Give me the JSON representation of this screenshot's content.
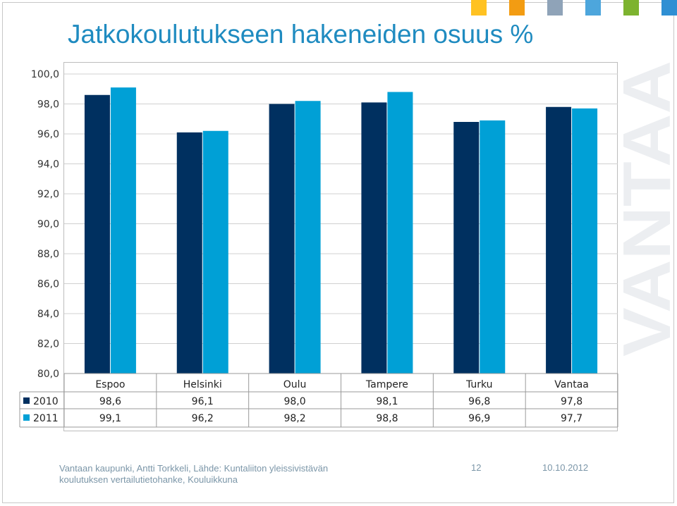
{
  "colors": {
    "series_2010": "#003060",
    "series_2011": "#00a0d6",
    "title": "#1f8bc0",
    "footer": "#7b96a8",
    "gridline": "#d0d0d0",
    "watermark": "#eceef1"
  },
  "brand_squares": [
    "#ffc222",
    "#f39c12",
    "#8fa3b8",
    "#4da6dc",
    "#7db32f",
    "#2f8fd3"
  ],
  "watermark_text": "VANTAA",
  "chart_data": {
    "type": "bar",
    "title": "Jatkokoulutukseen hakeneiden osuus %",
    "categories": [
      "Espoo",
      "Helsinki",
      "Oulu",
      "Tampere",
      "Turku",
      "Vantaa"
    ],
    "series": [
      {
        "name": "2010",
        "values": [
          98.6,
          96.1,
          98.0,
          98.1,
          96.8,
          97.8
        ],
        "labels": [
          "98,6",
          "96,1",
          "98,0",
          "98,1",
          "96,8",
          "97,8"
        ]
      },
      {
        "name": "2011",
        "values": [
          99.1,
          96.2,
          98.2,
          98.8,
          96.9,
          97.7
        ],
        "labels": [
          "99,1",
          "96,2",
          "98,2",
          "98,8",
          "96,9",
          "97,7"
        ]
      }
    ],
    "ylim": [
      80,
      100
    ],
    "yticks": [
      100,
      98,
      96,
      94,
      92,
      90,
      88,
      86,
      84,
      82,
      80
    ],
    "ytick_labels": [
      "100,0",
      "98,0",
      "96,0",
      "94,0",
      "92,0",
      "90,0",
      "88,0",
      "86,0",
      "84,0",
      "82,0",
      "80,0"
    ],
    "grid": true,
    "legend": "data-table"
  },
  "footer": {
    "source_line1": "Vantaan kaupunki, Antti Torkkeli, Lähde: Kuntaliiton yleissivistävän",
    "source_line2": "koulutuksen vertailutietohanke, Kouluikkuna",
    "page": "12",
    "date": "10.10.2012"
  }
}
